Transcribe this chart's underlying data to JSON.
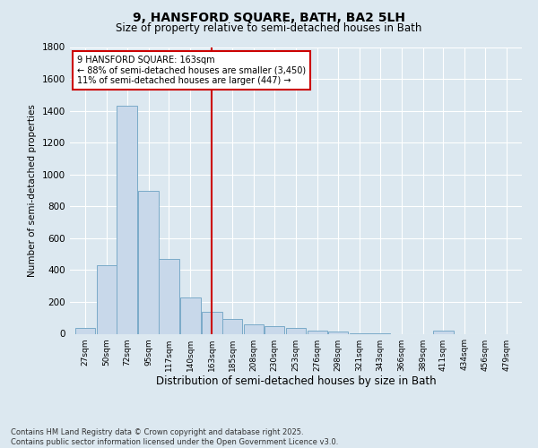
{
  "title": "9, HANSFORD SQUARE, BATH, BA2 5LH",
  "subtitle": "Size of property relative to semi-detached houses in Bath",
  "xlabel": "Distribution of semi-detached houses by size in Bath",
  "ylabel": "Number of semi-detached properties",
  "footer_line1": "Contains HM Land Registry data © Crown copyright and database right 2025.",
  "footer_line2": "Contains public sector information licensed under the Open Government Licence v3.0.",
  "property_label": "9 HANSFORD SQUARE: 163sqm",
  "annotation_line1": "← 88% of semi-detached houses are smaller (3,450)",
  "annotation_line2": "11% of semi-detached houses are larger (447) →",
  "property_value": 163,
  "bar_spacing": 23,
  "bar_color": "#c8d8ea",
  "bar_edge_color": "#7aaac8",
  "vline_color": "#cc0000",
  "annotation_box_color": "#cc0000",
  "background_color": "#dce8f0",
  "grid_color": "#ffffff",
  "categories": [
    27,
    50,
    72,
    95,
    117,
    140,
    163,
    185,
    208,
    230,
    253,
    276,
    298,
    321,
    343,
    366,
    389,
    411,
    434,
    456,
    479
  ],
  "values": [
    35,
    430,
    1430,
    900,
    470,
    230,
    140,
    95,
    60,
    50,
    35,
    20,
    15,
    5,
    5,
    0,
    0,
    20,
    0,
    0,
    0
  ],
  "ylim": [
    0,
    1800
  ],
  "yticks": [
    0,
    200,
    400,
    600,
    800,
    1000,
    1200,
    1400,
    1600,
    1800
  ]
}
